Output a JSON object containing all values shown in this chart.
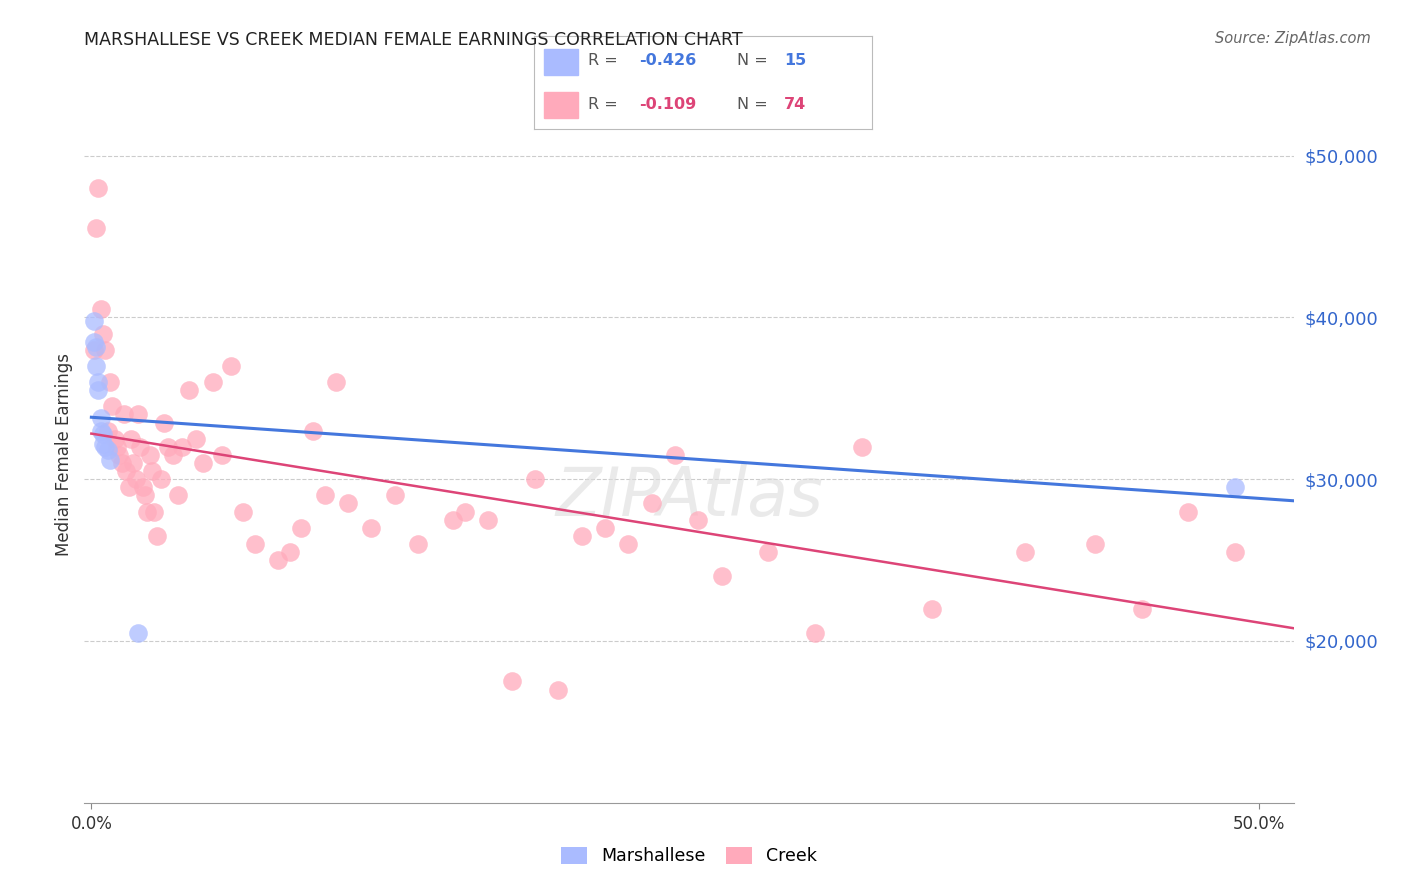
{
  "title": "MARSHALLESE VS CREEK MEDIAN FEMALE EARNINGS CORRELATION CHART",
  "source": "Source: ZipAtlas.com",
  "ylabel": "Median Female Earnings",
  "ytick_labels": [
    "$20,000",
    "$30,000",
    "$40,000",
    "$50,000"
  ],
  "ytick_values": [
    20000,
    30000,
    40000,
    50000
  ],
  "ymin": 10000,
  "ymax": 53000,
  "xmin": -0.003,
  "xmax": 0.515,
  "blue_color": "#aabbff",
  "pink_color": "#ffaabb",
  "blue_line_color": "#4477dd",
  "pink_line_color": "#dd4477",
  "marshallese_x": [
    0.001,
    0.001,
    0.002,
    0.002,
    0.003,
    0.003,
    0.004,
    0.004,
    0.005,
    0.005,
    0.006,
    0.007,
    0.008,
    0.02,
    0.49
  ],
  "marshallese_y": [
    39800,
    38500,
    38200,
    37000,
    36000,
    35500,
    33800,
    33000,
    32800,
    32200,
    32000,
    31800,
    31200,
    20500,
    29500
  ],
  "creek_x": [
    0.001,
    0.002,
    0.003,
    0.004,
    0.005,
    0.006,
    0.007,
    0.008,
    0.009,
    0.01,
    0.011,
    0.012,
    0.013,
    0.014,
    0.015,
    0.016,
    0.017,
    0.018,
    0.019,
    0.02,
    0.021,
    0.022,
    0.023,
    0.024,
    0.025,
    0.026,
    0.027,
    0.028,
    0.03,
    0.031,
    0.033,
    0.035,
    0.037,
    0.039,
    0.042,
    0.045,
    0.048,
    0.052,
    0.056,
    0.06,
    0.065,
    0.07,
    0.08,
    0.085,
    0.09,
    0.095,
    0.1,
    0.105,
    0.11,
    0.12,
    0.13,
    0.14,
    0.155,
    0.16,
    0.17,
    0.18,
    0.19,
    0.2,
    0.21,
    0.22,
    0.23,
    0.24,
    0.25,
    0.26,
    0.27,
    0.29,
    0.31,
    0.33,
    0.36,
    0.4,
    0.43,
    0.45,
    0.47,
    0.49
  ],
  "creek_y": [
    38000,
    45500,
    48000,
    40500,
    39000,
    38000,
    33000,
    36000,
    34500,
    32500,
    32000,
    31500,
    31000,
    34000,
    30500,
    29500,
    32500,
    31000,
    30000,
    34000,
    32000,
    29500,
    29000,
    28000,
    31500,
    30500,
    28000,
    26500,
    30000,
    33500,
    32000,
    31500,
    29000,
    32000,
    35500,
    32500,
    31000,
    36000,
    31500,
    37000,
    28000,
    26000,
    25000,
    25500,
    27000,
    33000,
    29000,
    36000,
    28500,
    27000,
    29000,
    26000,
    27500,
    28000,
    27500,
    17500,
    30000,
    17000,
    26500,
    27000,
    26000,
    28500,
    31500,
    27500,
    24000,
    25500,
    20500,
    32000,
    22000,
    25500,
    26000,
    22000,
    28000,
    25500
  ]
}
